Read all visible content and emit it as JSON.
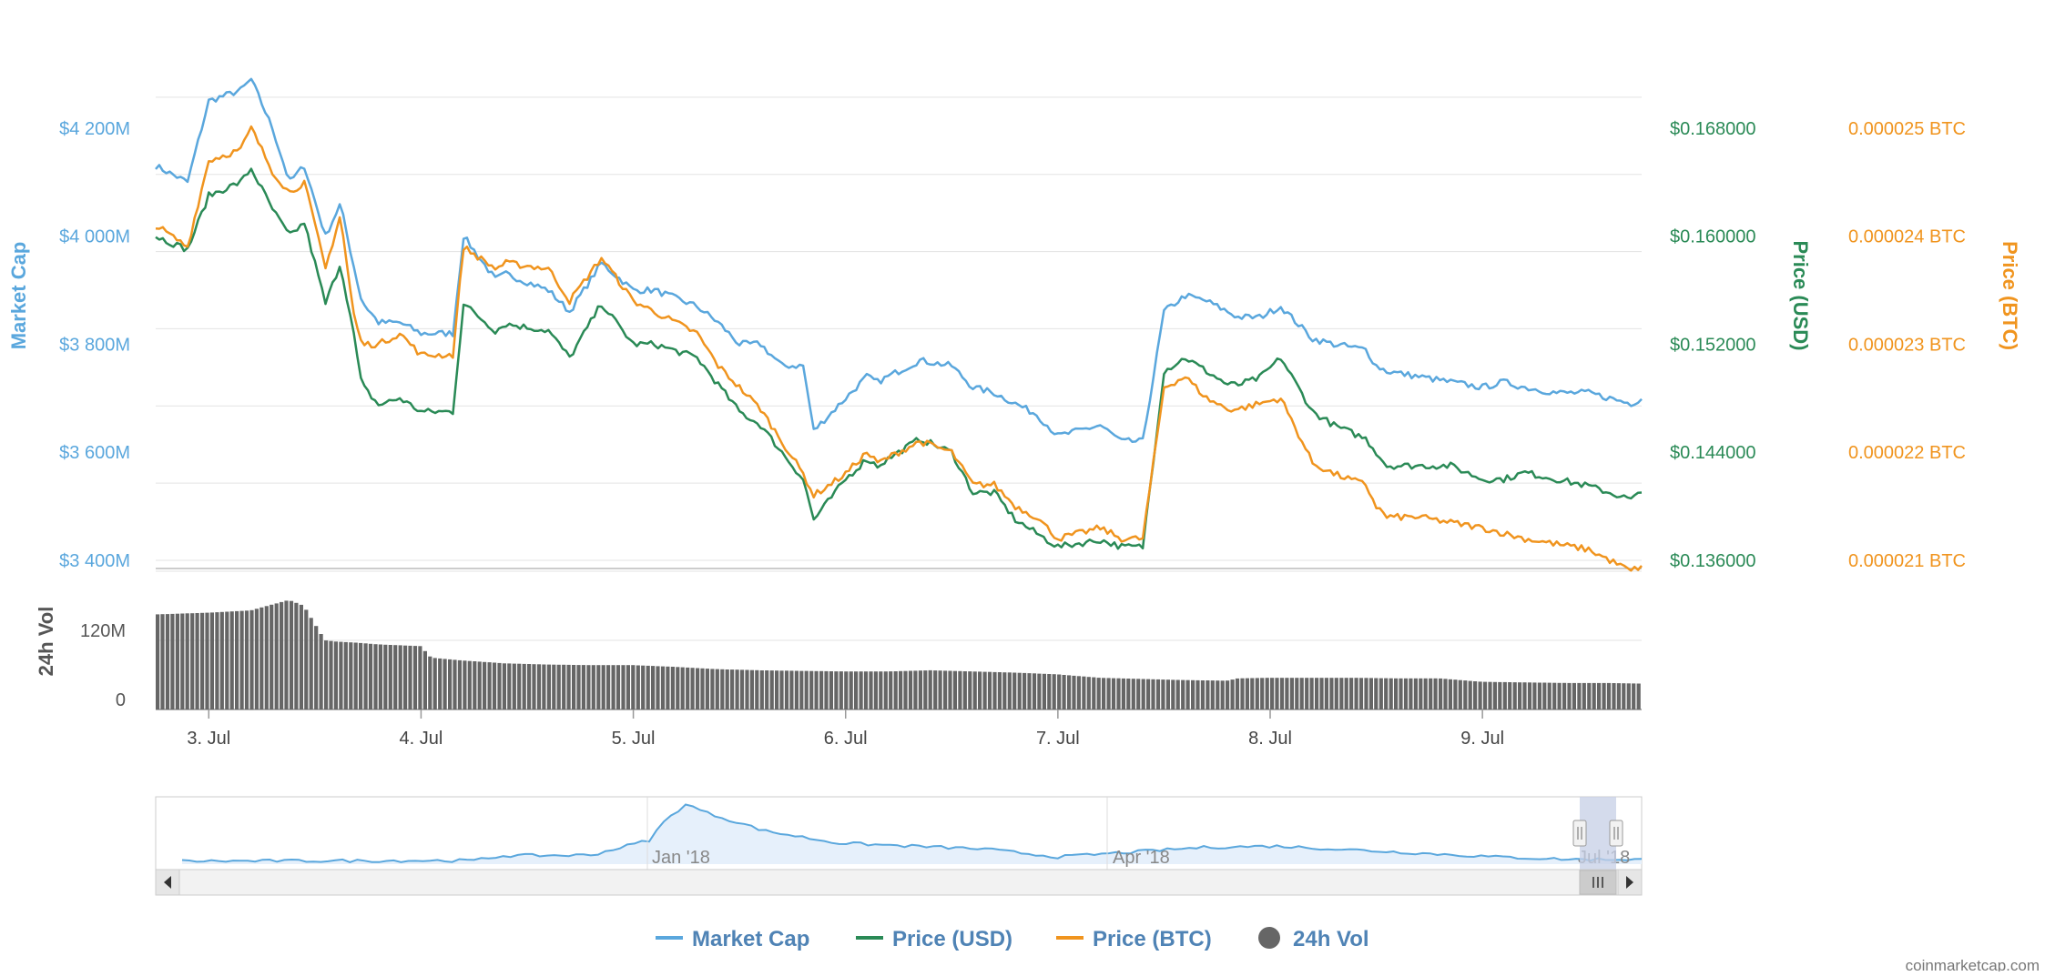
{
  "colors": {
    "market_cap": "#5aa7dd",
    "price_usd": "#2a8a56",
    "price_btc": "#f0941e",
    "volume": "#666666",
    "grid": "#e3e3e3",
    "navigator_fill": "#e6f0fb",
    "navigator_mask": "#c5cfe6"
  },
  "credit": "coinmarketcap.com",
  "legend": [
    {
      "key": "market_cap",
      "label": "Market Cap",
      "symbol": "line"
    },
    {
      "key": "price_usd",
      "label": "Price (USD)",
      "symbol": "line"
    },
    {
      "key": "price_btc",
      "label": "Price (BTC)",
      "symbol": "line"
    },
    {
      "key": "volume",
      "label": "24h Vol",
      "symbol": "circle"
    }
  ],
  "chart_data": {
    "type": "line",
    "x_ticks": [
      "3. Jul",
      "4. Jul",
      "5. Jul",
      "6. Jul",
      "7. Jul",
      "8. Jul",
      "9. Jul"
    ],
    "x_range": [
      2.75,
      9.75
    ],
    "grid": true,
    "legend_position": "bottom-center",
    "axes": {
      "market_cap": {
        "label": "Market Cap",
        "ticks": [
          "$3 400M",
          "$3 600M",
          "$3 800M",
          "$4 000M",
          "$4 200M"
        ],
        "range": [
          3400,
          4400
        ]
      },
      "price_usd": {
        "label": "Price (USD)",
        "ticks": [
          "$0.136000",
          "$0.144000",
          "$0.152000",
          "$0.160000",
          "$0.168000"
        ],
        "range": [
          0.136,
          0.176
        ]
      },
      "price_btc": {
        "label": "Price (BTC)",
        "ticks": [
          "0.000021 BTC",
          "0.000022 BTC",
          "0.000023 BTC",
          "0.000024 BTC",
          "0.000025 BTC"
        ],
        "range": [
          2.1e-05,
          2.6e-05
        ]
      },
      "volume": {
        "label": "24h Vol",
        "ticks": [
          "0",
          "120M"
        ],
        "range": [
          0,
          240
        ]
      }
    },
    "series": [
      {
        "key": "market_cap",
        "name": "Market Cap",
        "axis": "market_cap",
        "x": [
          2.75,
          2.9,
          3.0,
          3.15,
          3.2,
          3.3,
          3.38,
          3.45,
          3.55,
          3.62,
          3.68,
          3.72,
          3.8,
          3.9,
          4.0,
          4.15,
          4.2,
          4.35,
          4.4,
          4.6,
          4.7,
          4.85,
          5.0,
          5.1,
          5.3,
          5.4,
          5.5,
          5.6,
          5.7,
          5.8,
          5.85,
          6.0,
          6.1,
          6.15,
          6.25,
          6.35,
          6.5,
          6.6,
          6.7,
          6.8,
          6.9,
          7.0,
          7.2,
          7.3,
          7.4,
          7.5,
          7.6,
          7.7,
          7.8,
          7.85,
          7.95,
          8.05,
          8.2,
          8.3,
          8.45,
          8.5,
          8.55,
          8.7,
          8.85,
          9.0,
          9.1,
          9.2,
          9.35,
          9.5,
          9.6,
          9.7,
          9.75
        ],
        "y": [
          4130,
          4100,
          4250,
          4270,
          4290,
          4200,
          4100,
          4130,
          4000,
          4060,
          3950,
          3880,
          3840,
          3840,
          3820,
          3820,
          4000,
          3920,
          3930,
          3900,
          3860,
          3950,
          3900,
          3900,
          3870,
          3840,
          3800,
          3800,
          3760,
          3760,
          3640,
          3700,
          3740,
          3730,
          3750,
          3770,
          3760,
          3720,
          3710,
          3690,
          3670,
          3630,
          3650,
          3620,
          3620,
          3860,
          3890,
          3880,
          3860,
          3850,
          3850,
          3870,
          3810,
          3800,
          3790,
          3760,
          3750,
          3740,
          3730,
          3720,
          3730,
          3720,
          3710,
          3710,
          3700,
          3690,
          3700
        ]
      },
      {
        "key": "price_usd",
        "name": "Price (USD)",
        "axis": "price_usd",
        "x": [
          2.75,
          2.9,
          3.0,
          3.15,
          3.2,
          3.3,
          3.38,
          3.45,
          3.55,
          3.62,
          3.68,
          3.72,
          3.8,
          3.9,
          4.0,
          4.15,
          4.2,
          4.35,
          4.4,
          4.6,
          4.7,
          4.85,
          5.0,
          5.1,
          5.3,
          5.4,
          5.5,
          5.6,
          5.7,
          5.8,
          5.85,
          6.0,
          6.1,
          6.15,
          6.25,
          6.35,
          6.5,
          6.6,
          6.7,
          6.8,
          6.9,
          7.0,
          7.2,
          7.3,
          7.4,
          7.5,
          7.6,
          7.7,
          7.8,
          7.85,
          7.95,
          8.05,
          8.2,
          8.3,
          8.45,
          8.5,
          8.55,
          8.7,
          8.85,
          9.0,
          9.1,
          9.2,
          9.35,
          9.5,
          9.6,
          9.7,
          9.75
        ],
        "y": [
          0.16,
          0.159,
          0.163,
          0.164,
          0.165,
          0.162,
          0.16,
          0.161,
          0.155,
          0.158,
          0.153,
          0.149,
          0.1475,
          0.148,
          0.147,
          0.147,
          0.155,
          0.153,
          0.1535,
          0.153,
          0.151,
          0.155,
          0.152,
          0.152,
          0.151,
          0.149,
          0.147,
          0.146,
          0.144,
          0.142,
          0.139,
          0.142,
          0.1435,
          0.143,
          0.144,
          0.145,
          0.144,
          0.141,
          0.141,
          0.139,
          0.138,
          0.137,
          0.1375,
          0.137,
          0.137,
          0.15,
          0.151,
          0.15,
          0.149,
          0.149,
          0.1495,
          0.151,
          0.147,
          0.146,
          0.145,
          0.144,
          0.143,
          0.143,
          0.143,
          0.142,
          0.142,
          0.1425,
          0.142,
          0.1415,
          0.141,
          0.1405,
          0.141
        ]
      },
      {
        "key": "price_btc",
        "name": "Price (BTC)",
        "axis": "price_btc",
        "x": [
          2.75,
          2.9,
          3.0,
          3.15,
          3.2,
          3.3,
          3.38,
          3.45,
          3.55,
          3.62,
          3.68,
          3.72,
          3.8,
          3.9,
          4.0,
          4.15,
          4.2,
          4.35,
          4.4,
          4.6,
          4.7,
          4.85,
          5.0,
          5.1,
          5.3,
          5.4,
          5.5,
          5.6,
          5.7,
          5.8,
          5.85,
          6.0,
          6.1,
          6.15,
          6.25,
          6.35,
          6.5,
          6.6,
          6.7,
          6.8,
          6.9,
          7.0,
          7.2,
          7.3,
          7.4,
          7.5,
          7.6,
          7.7,
          7.8,
          7.85,
          7.95,
          8.05,
          8.2,
          8.3,
          8.45,
          8.5,
          8.55,
          8.7,
          8.85,
          9.0,
          9.1,
          9.2,
          9.35,
          9.5,
          9.6,
          9.7,
          9.75
        ],
        "y": [
          2.41e-05,
          2.39e-05,
          2.47e-05,
          2.48e-05,
          2.5e-05,
          2.46e-05,
          2.44e-05,
          2.45e-05,
          2.37e-05,
          2.42e-05,
          2.33e-05,
          2.3e-05,
          2.3e-05,
          2.31e-05,
          2.29e-05,
          2.29e-05,
          2.39e-05,
          2.37e-05,
          2.375e-05,
          2.37e-05,
          2.34e-05,
          2.38e-05,
          2.34e-05,
          2.33e-05,
          2.31e-05,
          2.28e-05,
          2.26e-05,
          2.24e-05,
          2.21e-05,
          2.18e-05,
          2.16e-05,
          2.18e-05,
          2.2e-05,
          2.19e-05,
          2.2e-05,
          2.21e-05,
          2.2e-05,
          2.17e-05,
          2.17e-05,
          2.15e-05,
          2.14e-05,
          2.12e-05,
          2.13e-05,
          2.12e-05,
          2.12e-05,
          2.26e-05,
          2.27e-05,
          2.25e-05,
          2.24e-05,
          2.24e-05,
          2.245e-05,
          2.25e-05,
          2.19e-05,
          2.18e-05,
          2.17e-05,
          2.15e-05,
          2.14e-05,
          2.14e-05,
          2.135e-05,
          2.13e-05,
          2.125e-05,
          2.12e-05,
          2.115e-05,
          2.11e-05,
          2.1e-05,
          2.09e-05,
          2.095e-05
        ]
      },
      {
        "key": "volume",
        "name": "24h Vol",
        "axis": "volume",
        "type": "bar",
        "x": [
          2.75,
          3.0,
          3.2,
          3.38,
          3.45,
          3.55,
          3.6,
          3.7,
          3.8,
          4.0,
          4.05,
          4.2,
          4.4,
          4.6,
          4.8,
          5.0,
          5.2,
          5.4,
          5.6,
          5.8,
          6.0,
          6.2,
          6.4,
          6.6,
          6.8,
          7.0,
          7.2,
          7.4,
          7.6,
          7.8,
          7.85,
          8.0,
          8.2,
          8.4,
          8.6,
          8.8,
          9.0,
          9.2,
          9.4,
          9.6,
          9.75
        ],
        "y": [
          165,
          168,
          172,
          190,
          180,
          120,
          118,
          116,
          113,
          110,
          90,
          85,
          80,
          78,
          77,
          77,
          74,
          70,
          68,
          67,
          66,
          66,
          68,
          66,
          64,
          61,
          55,
          53,
          51,
          50,
          54,
          55,
          55,
          55,
          54,
          54,
          48,
          47,
          46,
          46,
          45
        ]
      }
    ]
  },
  "navigator": {
    "ticks": [
      "Jan '18",
      "Apr '18",
      "Jul '18"
    ]
  }
}
